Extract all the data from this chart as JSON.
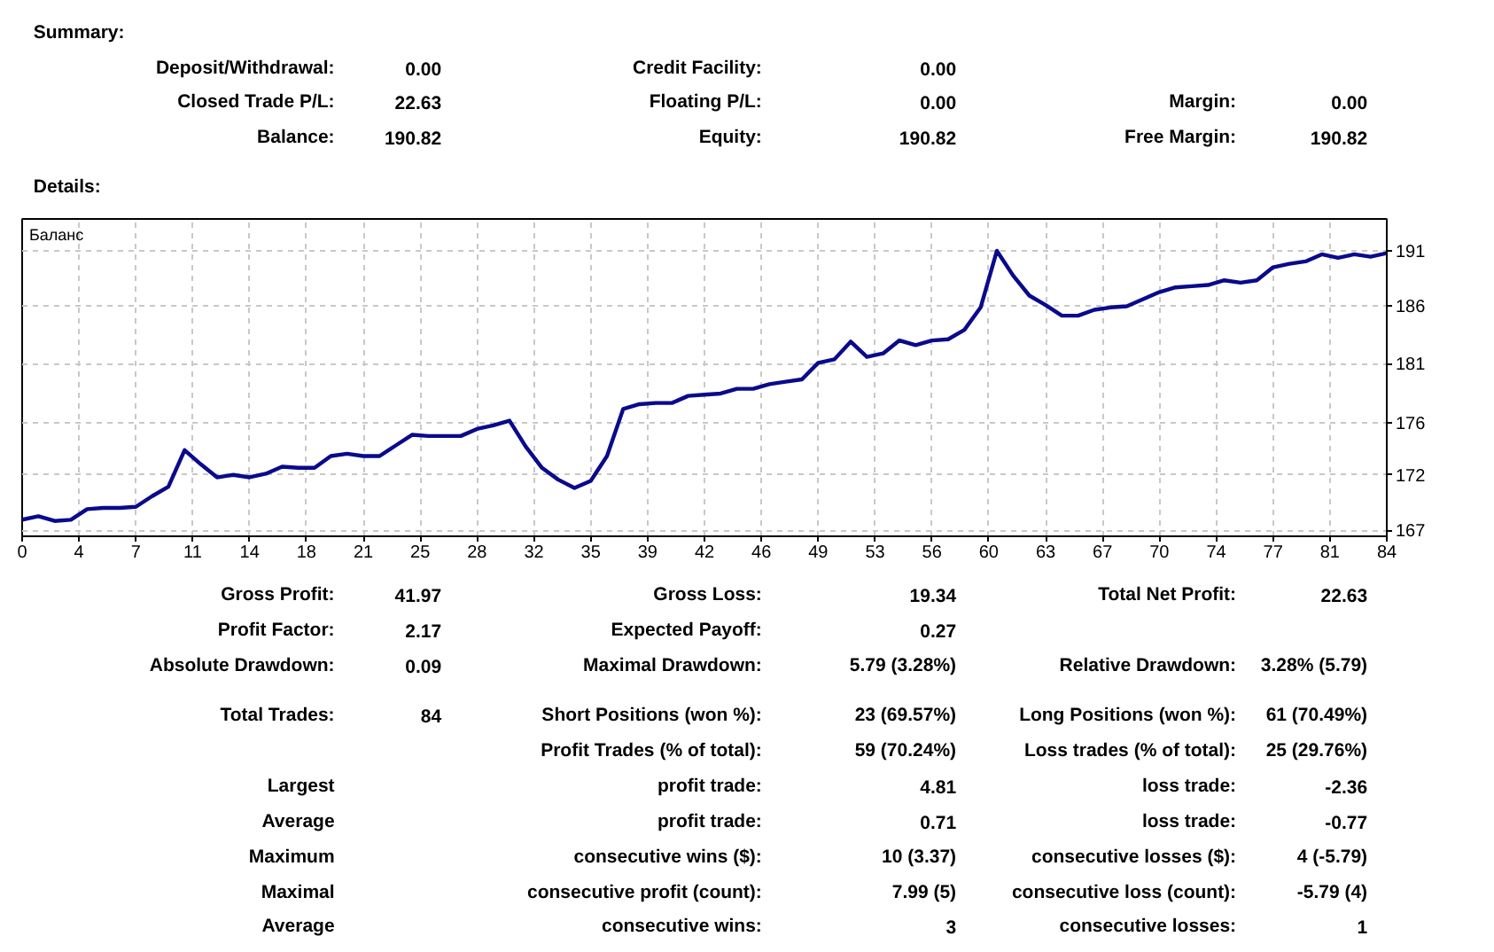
{
  "chart_data": {
    "type": "line",
    "ylabel": "Баланс",
    "x": [
      0,
      1,
      2,
      3,
      4,
      5,
      6,
      7,
      8,
      9,
      10,
      11,
      12,
      13,
      14,
      15,
      16,
      17,
      18,
      19,
      20,
      21,
      22,
      23,
      24,
      25,
      26,
      27,
      28,
      29,
      30,
      31,
      32,
      33,
      34,
      35,
      36,
      37,
      38,
      39,
      40,
      41,
      42,
      43,
      44,
      45,
      46,
      47,
      48,
      49,
      50,
      51,
      52,
      53,
      54,
      55,
      56,
      57,
      58,
      59,
      60,
      61,
      62,
      63,
      64,
      65,
      66,
      67,
      68,
      69,
      70,
      71,
      72,
      73,
      74,
      75,
      76,
      77,
      78,
      79,
      80,
      81,
      82,
      83,
      84
    ],
    "series": [
      {
        "color": "#0a0a8c",
        "line_style": "solid",
        "values": [
          168.2,
          168.5,
          168.1,
          168.2,
          169.1,
          169.2,
          169.2,
          169.3,
          170.2,
          171.0,
          174.1,
          172.9,
          171.8,
          172.0,
          171.8,
          172.1,
          172.7,
          172.6,
          172.6,
          173.6,
          173.8,
          173.6,
          173.6,
          174.5,
          175.4,
          175.3,
          175.3,
          175.3,
          175.9,
          176.2,
          176.6,
          174.4,
          172.6,
          171.6,
          170.9,
          171.5,
          173.6,
          177.6,
          178.0,
          178.1,
          178.1,
          178.7,
          178.8,
          178.9,
          179.3,
          179.3,
          179.7,
          179.9,
          180.1,
          181.5,
          181.8,
          183.3,
          182.0,
          182.3,
          183.4,
          183.0,
          183.4,
          183.5,
          184.3,
          186.2,
          191.0,
          188.9,
          187.2,
          186.4,
          185.5,
          185.5,
          186.0,
          186.2,
          186.3,
          186.9,
          187.5,
          187.9,
          188.0,
          188.1,
          188.5,
          188.3,
          188.5,
          189.6,
          189.9,
          190.1,
          190.7,
          190.4,
          190.7,
          190.5,
          190.8
        ]
      }
    ],
    "xlim": [
      0,
      84
    ],
    "xticks": [
      0,
      {
        "value": 3.5,
        "label": "4"
      },
      7,
      {
        "value": 10.5,
        "label": "11"
      },
      14,
      {
        "value": 17.5,
        "label": "18"
      },
      21,
      {
        "value": 24.5,
        "label": "25"
      },
      28,
      {
        "value": 31.5,
        "label": "32"
      },
      35,
      {
        "value": 38.5,
        "label": "39"
      },
      42,
      {
        "value": 45.5,
        "label": "46"
      },
      49,
      {
        "value": 52.5,
        "label": "53"
      },
      56,
      {
        "value": 59.5,
        "label": "60"
      },
      63,
      {
        "value": 66.5,
        "label": "67"
      },
      70,
      {
        "value": 73.5,
        "label": "74"
      },
      77,
      {
        "value": 80.5,
        "label": "81"
      },
      84
    ],
    "ylim": [
      166.8,
      193.7
    ],
    "yticks": [
      {
        "value": 167.3,
        "label": "167"
      },
      {
        "value": 172.0,
        "label": "172"
      },
      {
        "value": 176.45,
        "label": "176"
      },
      {
        "value": 181.45,
        "label": "181"
      },
      {
        "value": 186.3,
        "label": "186"
      },
      {
        "value": 191.0,
        "label": "191"
      }
    ],
    "grid": true,
    "annotations": [
      "Summary:",
      "Deposit/Withdrawal:",
      "0.00",
      "Credit Facility:",
      "0.00",
      "Closed Trade P/L:",
      "22.63",
      "Floating P/L:",
      "0.00",
      "Margin:",
      "0.00",
      "Balance:",
      "190.82",
      "Equity:",
      "190.82",
      "Free Margin:",
      "190.82",
      "Details:",
      "Gross Profit:",
      "41.97",
      "Gross Loss:",
      "19.34",
      "Total Net Profit:",
      "22.63",
      "Profit Factor:",
      "2.17",
      "Expected Payoff:",
      "0.27",
      "Absolute Drawdown:",
      "0.09",
      "Maximal Drawdown:",
      "5.79 (3.28%)",
      "Relative Drawdown:",
      "3.28% (5.79)",
      "Total Trades:",
      "84",
      "Short Positions (won %):",
      "23 (69.57%)",
      "Long Positions (won %):",
      "61 (70.49%)",
      "Profit Trades (% of total):",
      "59 (70.24%)",
      "Loss trades (% of total):",
      "25 (29.76%)",
      "Largest",
      "profit trade:",
      "4.81",
      "loss trade:",
      "-2.36",
      "Average",
      "profit trade:",
      "0.71",
      "loss trade:",
      "-0.77",
      "Maximum",
      "consecutive wins ($):",
      "10 (3.37)",
      "consecutive losses ($):",
      "4 (-5.79)",
      "Maximal",
      "consecutive profit (count):",
      "7.99 (5)",
      "consecutive loss (count):",
      "-5.79 (4)",
      "Average",
      "consecutive wins:",
      "3",
      "consecutive losses:",
      "1"
    ]
  }
}
